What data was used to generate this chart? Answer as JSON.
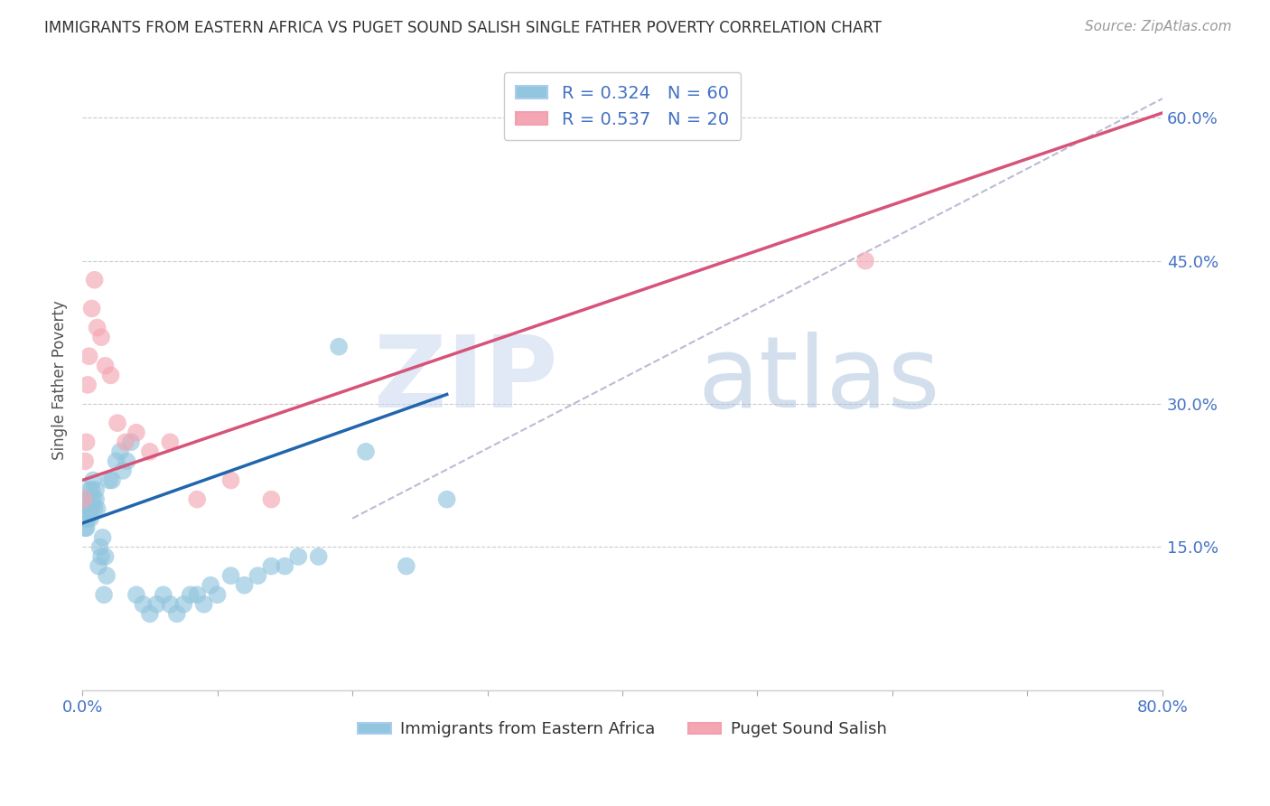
{
  "title": "IMMIGRANTS FROM EASTERN AFRICA VS PUGET SOUND SALISH SINGLE FATHER POVERTY CORRELATION CHART",
  "source": "Source: ZipAtlas.com",
  "ylabel": "Single Father Poverty",
  "legend1_label": "R = 0.324   N = 60",
  "legend2_label": "R = 0.537   N = 20",
  "legend_bottom1": "Immigrants from Eastern Africa",
  "legend_bottom2": "Puget Sound Salish",
  "blue_color": "#92c5de",
  "pink_color": "#f4a6b2",
  "blue_line_color": "#2166ac",
  "pink_line_color": "#d6537a",
  "dashed_line_color": "#aaaacc",
  "xlim": [
    0.0,
    0.8
  ],
  "ylim": [
    0.0,
    0.65
  ],
  "yticks": [
    0.15,
    0.3,
    0.45,
    0.6
  ],
  "ytick_labels": [
    "15.0%",
    "30.0%",
    "45.0%",
    "60.0%"
  ],
  "blue_scatter_x": [
    0.001,
    0.001,
    0.002,
    0.002,
    0.002,
    0.003,
    0.003,
    0.003,
    0.004,
    0.004,
    0.005,
    0.005,
    0.006,
    0.006,
    0.007,
    0.007,
    0.008,
    0.008,
    0.009,
    0.01,
    0.01,
    0.011,
    0.012,
    0.013,
    0.014,
    0.015,
    0.016,
    0.017,
    0.018,
    0.02,
    0.022,
    0.025,
    0.028,
    0.03,
    0.033,
    0.036,
    0.04,
    0.045,
    0.05,
    0.055,
    0.06,
    0.065,
    0.07,
    0.075,
    0.08,
    0.085,
    0.09,
    0.095,
    0.1,
    0.11,
    0.12,
    0.13,
    0.14,
    0.15,
    0.16,
    0.175,
    0.19,
    0.21,
    0.24,
    0.27
  ],
  "blue_scatter_y": [
    0.18,
    0.19,
    0.17,
    0.19,
    0.2,
    0.18,
    0.17,
    0.19,
    0.18,
    0.2,
    0.19,
    0.21,
    0.18,
    0.2,
    0.19,
    0.21,
    0.2,
    0.22,
    0.19,
    0.21,
    0.2,
    0.19,
    0.13,
    0.15,
    0.14,
    0.16,
    0.1,
    0.14,
    0.12,
    0.22,
    0.22,
    0.24,
    0.25,
    0.23,
    0.24,
    0.26,
    0.1,
    0.09,
    0.08,
    0.09,
    0.1,
    0.09,
    0.08,
    0.09,
    0.1,
    0.1,
    0.09,
    0.11,
    0.1,
    0.12,
    0.11,
    0.12,
    0.13,
    0.13,
    0.14,
    0.14,
    0.36,
    0.25,
    0.13,
    0.2
  ],
  "pink_scatter_x": [
    0.001,
    0.002,
    0.003,
    0.004,
    0.005,
    0.007,
    0.009,
    0.011,
    0.014,
    0.017,
    0.021,
    0.026,
    0.032,
    0.04,
    0.05,
    0.065,
    0.085,
    0.11,
    0.14,
    0.58
  ],
  "pink_scatter_y": [
    0.2,
    0.24,
    0.26,
    0.32,
    0.35,
    0.4,
    0.43,
    0.38,
    0.37,
    0.34,
    0.33,
    0.28,
    0.26,
    0.27,
    0.25,
    0.26,
    0.2,
    0.22,
    0.2,
    0.45
  ],
  "blue_line_x": [
    0.0,
    0.27
  ],
  "blue_line_y": [
    0.175,
    0.31
  ],
  "pink_line_x": [
    0.0,
    0.8
  ],
  "pink_line_y": [
    0.22,
    0.605
  ],
  "dashed_line_x": [
    0.2,
    0.8
  ],
  "dashed_line_y": [
    0.18,
    0.62
  ]
}
